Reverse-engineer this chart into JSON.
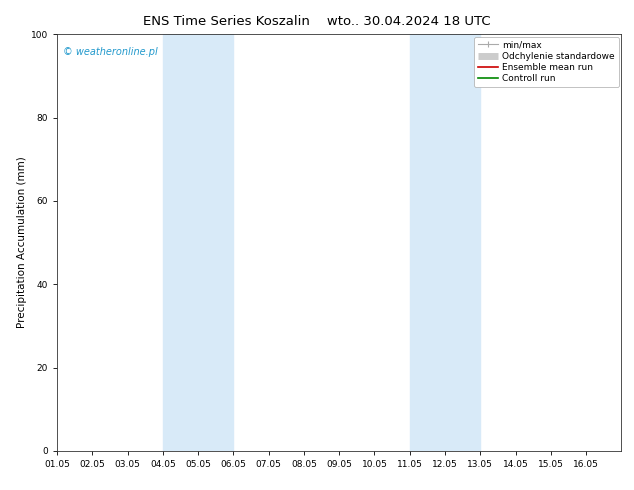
{
  "title_left": "ENS Time Series Koszalin",
  "title_right": "wto.. 30.04.2024 18 UTC",
  "ylabel": "Precipitation Accumulation (mm)",
  "ylim": [
    0,
    100
  ],
  "xlim": [
    0,
    16
  ],
  "xtick_labels": [
    "01.05",
    "02.05",
    "03.05",
    "04.05",
    "05.05",
    "06.05",
    "07.05",
    "08.05",
    "09.05",
    "10.05",
    "11.05",
    "12.05",
    "13.05",
    "14.05",
    "15.05",
    "16.05"
  ],
  "ytick_values": [
    0,
    20,
    40,
    60,
    80,
    100
  ],
  "shaded_bands": [
    {
      "xmin": 3,
      "xmax": 5,
      "color": "#d8eaf8"
    },
    {
      "xmin": 10,
      "xmax": 12,
      "color": "#d8eaf8"
    }
  ],
  "watermark_text": "© weatheronline.pl",
  "watermark_color": "#2299cc",
  "legend_items": [
    {
      "label": "min/max",
      "color": "#aaaaaa",
      "lw": 1.0
    },
    {
      "label": "Odchylenie standardowe",
      "color": "#cccccc",
      "lw": 6
    },
    {
      "label": "Ensemble mean run",
      "color": "#cc0000",
      "lw": 1.2
    },
    {
      "label": "Controll run",
      "color": "#008800",
      "lw": 1.2
    }
  ],
  "bg_color": "#ffffff",
  "plot_bg_color": "#ffffff",
  "title_fontsize": 9.5,
  "ylabel_fontsize": 7.5,
  "tick_fontsize": 6.5,
  "legend_fontsize": 6.5,
  "watermark_fontsize": 7.0
}
